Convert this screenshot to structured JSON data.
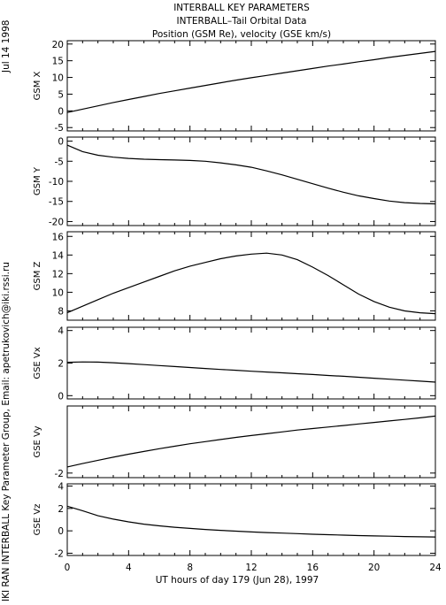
{
  "header": {
    "date": "Jul 14 1998",
    "title_line1": "INTERBALL KEY PARAMETERS",
    "title_line2": "INTERBALL–Tail Orbital Data",
    "title_line3": "Position (GSM Re), velocity (GSE km/s)",
    "credit": "IKI RAN INTERBALL Key Parameter Group, Email: apetrukovich@iki.rssi.ru"
  },
  "chart_data": {
    "type": "line",
    "xlabel": "UT hours of day 179 (Jun 28), 1997",
    "xlim": [
      0,
      24
    ],
    "xticks": [
      0,
      4,
      8,
      12,
      16,
      20,
      24
    ],
    "panels": [
      {
        "ylabel": "GSM X",
        "ylim": [
          -6,
          21
        ],
        "yticks": [
          -5,
          0,
          5,
          10,
          15,
          20
        ],
        "x": [
          0,
          1,
          2,
          3,
          4,
          5,
          6,
          7,
          8,
          9,
          10,
          11,
          12,
          13,
          14,
          15,
          16,
          17,
          18,
          19,
          20,
          21,
          22,
          23,
          24
        ],
        "y": [
          -0.5,
          0.5,
          1.5,
          2.5,
          3.4,
          4.3,
          5.2,
          6.0,
          6.8,
          7.6,
          8.4,
          9.2,
          9.9,
          10.6,
          11.3,
          12.0,
          12.7,
          13.4,
          14.0,
          14.7,
          15.3,
          16.0,
          16.6,
          17.2,
          17.8
        ]
      },
      {
        "ylabel": "GSM Y",
        "ylim": [
          -21,
          1
        ],
        "yticks": [
          -20,
          -15,
          -10,
          -5,
          0
        ],
        "x": [
          0,
          1,
          2,
          3,
          4,
          5,
          6,
          7,
          8,
          9,
          10,
          11,
          12,
          13,
          14,
          15,
          16,
          17,
          18,
          19,
          20,
          21,
          22,
          23,
          24
        ],
        "y": [
          -1.0,
          -2.6,
          -3.5,
          -4.0,
          -4.3,
          -4.5,
          -4.6,
          -4.7,
          -4.8,
          -5.0,
          -5.4,
          -5.9,
          -6.5,
          -7.4,
          -8.4,
          -9.5,
          -10.6,
          -11.7,
          -12.7,
          -13.6,
          -14.3,
          -14.9,
          -15.3,
          -15.5,
          -15.6
        ]
      },
      {
        "ylabel": "GSM Z",
        "ylim": [
          7,
          16.5
        ],
        "yticks": [
          8,
          10,
          12,
          14,
          16
        ],
        "x": [
          0,
          1,
          2,
          3,
          4,
          5,
          6,
          7,
          8,
          9,
          10,
          11,
          12,
          13,
          14,
          15,
          16,
          17,
          18,
          19,
          20,
          21,
          22,
          23,
          24
        ],
        "y": [
          7.8,
          8.5,
          9.2,
          9.9,
          10.5,
          11.1,
          11.7,
          12.3,
          12.8,
          13.2,
          13.6,
          13.9,
          14.1,
          14.2,
          14.0,
          13.5,
          12.7,
          11.8,
          10.8,
          9.8,
          9.0,
          8.4,
          8.0,
          7.8,
          7.7
        ]
      },
      {
        "ylabel": "GSE Vx",
        "ylim": [
          -0.2,
          4.2
        ],
        "yticks": [
          0,
          2,
          4
        ],
        "x": [
          0,
          1,
          2,
          3,
          4,
          5,
          6,
          7,
          8,
          9,
          10,
          11,
          12,
          13,
          14,
          15,
          16,
          17,
          18,
          19,
          20,
          21,
          22,
          23,
          24
        ],
        "y": [
          2.05,
          2.07,
          2.06,
          2.02,
          1.97,
          1.91,
          1.85,
          1.79,
          1.73,
          1.67,
          1.61,
          1.56,
          1.5,
          1.45,
          1.4,
          1.35,
          1.3,
          1.24,
          1.19,
          1.13,
          1.07,
          1.01,
          0.95,
          0.89,
          0.83
        ]
      },
      {
        "ylabel": "GSE Vy",
        "ylim": [
          -2.15,
          0.2
        ],
        "yticks": [
          -2
        ],
        "x": [
          0,
          1,
          2,
          3,
          4,
          5,
          6,
          7,
          8,
          9,
          10,
          11,
          12,
          13,
          14,
          15,
          16,
          17,
          18,
          19,
          20,
          21,
          22,
          23,
          24
        ],
        "y": [
          -1.8,
          -1.69,
          -1.58,
          -1.48,
          -1.38,
          -1.29,
          -1.2,
          -1.12,
          -1.04,
          -0.97,
          -0.9,
          -0.83,
          -0.77,
          -0.71,
          -0.65,
          -0.59,
          -0.54,
          -0.49,
          -0.44,
          -0.39,
          -0.34,
          -0.29,
          -0.24,
          -0.19,
          -0.13
        ]
      },
      {
        "ylabel": "GSE Vz",
        "ylim": [
          -2.2,
          4.2
        ],
        "yticks": [
          -2,
          0,
          2,
          4
        ],
        "x": [
          0,
          1,
          2,
          3,
          4,
          5,
          6,
          7,
          8,
          9,
          10,
          11,
          12,
          13,
          14,
          15,
          16,
          17,
          18,
          19,
          20,
          21,
          22,
          23,
          24
        ],
        "y": [
          2.2,
          1.8,
          1.35,
          1.05,
          0.8,
          0.6,
          0.45,
          0.32,
          0.22,
          0.12,
          0.04,
          -0.03,
          -0.1,
          -0.15,
          -0.2,
          -0.25,
          -0.3,
          -0.34,
          -0.38,
          -0.42,
          -0.45,
          -0.48,
          -0.51,
          -0.53,
          -0.55
        ]
      }
    ]
  }
}
